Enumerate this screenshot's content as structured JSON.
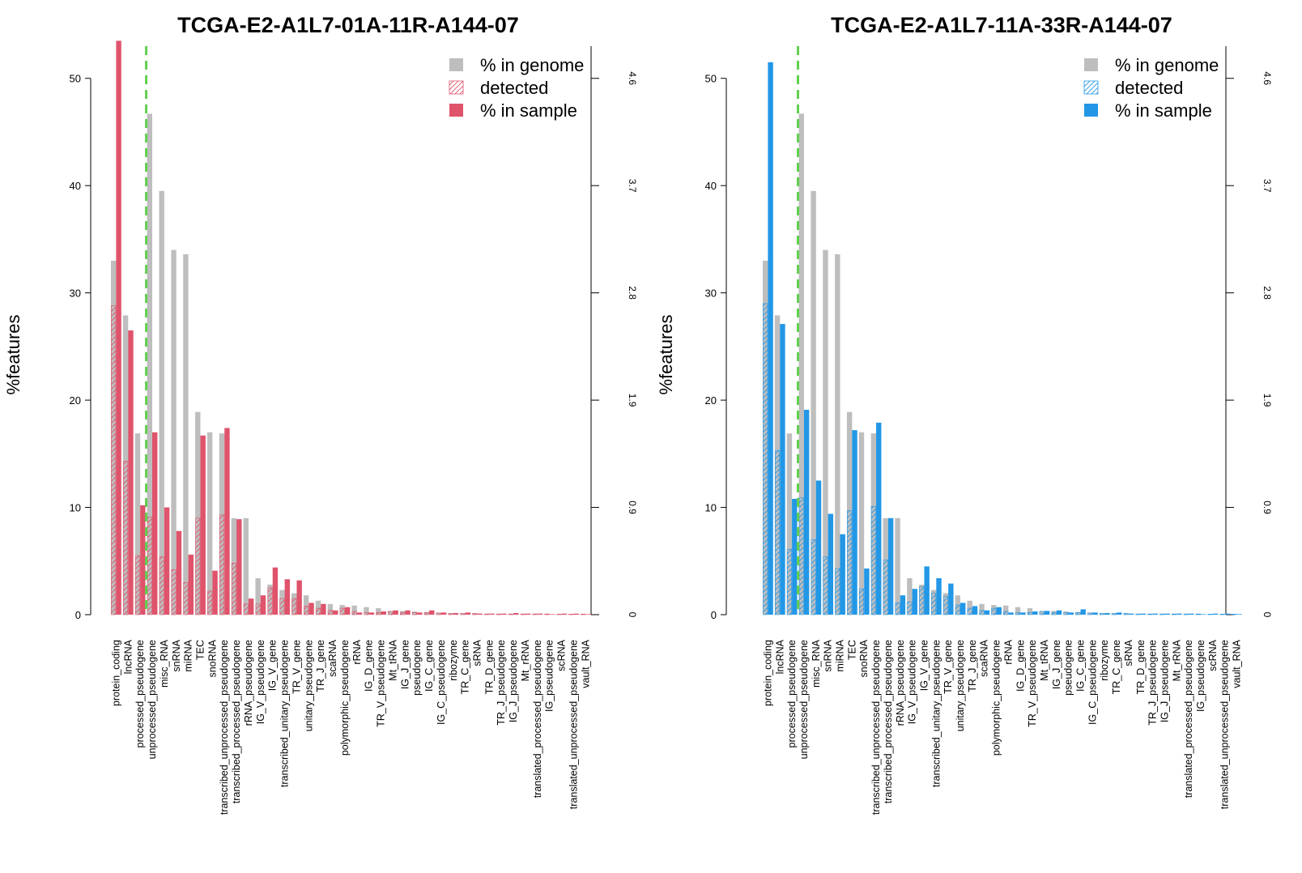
{
  "colors": {
    "genome": "#bebebe",
    "left_sample": "#df536b",
    "right_sample": "#2297e6",
    "cutoff": "#61d04f"
  },
  "chart_data": [
    {
      "type": "bar",
      "title": "TCGA-E2-A1L7-01A-11R-A144-07",
      "ylabel": "%features",
      "ylim": [
        0,
        53
      ],
      "yticks": [
        "0",
        "10",
        "20",
        "30",
        "40",
        "50"
      ],
      "right_ticks": [
        "0",
        "0.9",
        "1.9",
        "2.8",
        "3.7",
        "4.6"
      ],
      "legend": [
        "% in genome",
        "detected",
        "% in sample"
      ],
      "legend_position": "top-right",
      "sample_color": "left_sample",
      "cutoff_after_index": 2,
      "categories": [
        "protein_coding",
        "lncRNA",
        "processed_pseudogene",
        "unprocessed_pseudogene",
        "misc_RNA",
        "snRNA",
        "miRNA",
        "TEC",
        "snoRNA",
        "transcribed_unprocessed_pseudogene",
        "transcribed_processed_pseudogene",
        "rRNA_pseudogene",
        "IG_V_pseudogene",
        "IG_V_gene",
        "transcribed_unitary_pseudogene",
        "TR_V_gene",
        "unitary_pseudogene",
        "TR_J_gene",
        "scaRNA",
        "polymorphic_pseudogene",
        "rRNA",
        "IG_D_gene",
        "TR_V_pseudogene",
        "Mt_tRNA",
        "IG_J_gene",
        "pseudogene",
        "IG_C_gene",
        "IG_C_pseudogene",
        "ribozyme",
        "TR_C_gene",
        "sRNA",
        "TR_D_gene",
        "TR_J_pseudogene",
        "IG_J_pseudogene",
        "Mt_rRNA",
        "translated_processed_pseudogene",
        "IG_pseudogene",
        "scRNA",
        "translated_unprocessed_pseudogene",
        "vault_RNA"
      ],
      "series": [
        {
          "name": "% in genome",
          "values": [
            33.0,
            27.9,
            16.9,
            46.7,
            39.5,
            34.0,
            33.6,
            18.9,
            17.0,
            16.9,
            9.0,
            9.0,
            3.4,
            2.8,
            2.3,
            2.0,
            1.8,
            1.3,
            1.0,
            0.9,
            0.85,
            0.7,
            0.6,
            0.35,
            0.35,
            0.3,
            0.25,
            0.2,
            0.15,
            0.15,
            0.15,
            0.1,
            0.1,
            0.1,
            0.1,
            0.1,
            0.1,
            0.05,
            0.05,
            0.05
          ]
        },
        {
          "name": "detected",
          "values": [
            28.8,
            14.3,
            5.5,
            9.1,
            5.4,
            4.2,
            3.0,
            9.0,
            2.2,
            9.3,
            4.8,
            1.0,
            1.0,
            2.5,
            1.5,
            1.5,
            0.8,
            0.6,
            0.4,
            0.6,
            0.3,
            0.2,
            0.2,
            0.3,
            0.2,
            0.2,
            0.2,
            0.15,
            0.1,
            0.1,
            0.1,
            0.05,
            0.05,
            0.05,
            0.05,
            0.05,
            0.05,
            0.05,
            0.05,
            0.05
          ]
        },
        {
          "name": "% in sample",
          "values": [
            53.5,
            26.5,
            10.2,
            17.0,
            10.0,
            7.8,
            5.6,
            16.7,
            4.1,
            17.4,
            8.9,
            1.5,
            1.8,
            4.4,
            3.3,
            3.2,
            1.1,
            1.0,
            0.4,
            0.7,
            0.2,
            0.2,
            0.3,
            0.4,
            0.4,
            0.2,
            0.4,
            0.2,
            0.15,
            0.2,
            0.1,
            0.1,
            0.1,
            0.15,
            0.1,
            0.1,
            0.05,
            0.1,
            0.1,
            0.05
          ]
        }
      ]
    },
    {
      "type": "bar",
      "title": "TCGA-E2-A1L7-11A-33R-A144-07",
      "ylabel": "%features",
      "ylim": [
        0,
        53
      ],
      "yticks": [
        "0",
        "10",
        "20",
        "30",
        "40",
        "50"
      ],
      "right_ticks": [
        "0",
        "0.9",
        "1.9",
        "2.8",
        "3.7",
        "4.6"
      ],
      "legend": [
        "% in genome",
        "detected",
        "% in sample"
      ],
      "legend_position": "top-right",
      "sample_color": "right_sample",
      "cutoff_after_index": 2,
      "categories": [
        "protein_coding",
        "lncRNA",
        "processed_pseudogene",
        "unprocessed_pseudogene",
        "misc_RNA",
        "snRNA",
        "miRNA",
        "TEC",
        "snoRNA",
        "transcribed_unprocessed_pseudogene",
        "transcribed_processed_pseudogene",
        "rRNA_pseudogene",
        "IG_V_pseudogene",
        "IG_V_gene",
        "transcribed_unitary_pseudogene",
        "TR_V_gene",
        "unitary_pseudogene",
        "TR_J_gene",
        "scaRNA",
        "polymorphic_pseudogene",
        "rRNA",
        "IG_D_gene",
        "TR_V_pseudogene",
        "Mt_tRNA",
        "IG_J_gene",
        "pseudogene",
        "IG_C_gene",
        "IG_C_pseudogene",
        "ribozyme",
        "TR_C_gene",
        "sRNA",
        "TR_D_gene",
        "TR_J_pseudogene",
        "IG_J_pseudogene",
        "Mt_rRNA",
        "translated_processed_pseudogene",
        "IG_pseudogene",
        "scRNA",
        "translated_unprocessed_pseudogene",
        "vault_RNA"
      ],
      "series": [
        {
          "name": "% in genome",
          "values": [
            33.0,
            27.9,
            16.9,
            46.7,
            39.5,
            34.0,
            33.6,
            18.9,
            17.0,
            16.9,
            9.0,
            9.0,
            3.4,
            2.8,
            2.3,
            2.0,
            1.8,
            1.3,
            1.0,
            0.9,
            0.85,
            0.7,
            0.6,
            0.35,
            0.35,
            0.3,
            0.25,
            0.2,
            0.15,
            0.15,
            0.15,
            0.1,
            0.1,
            0.1,
            0.1,
            0.1,
            0.1,
            0.05,
            0.05,
            0.05
          ]
        },
        {
          "name": "detected",
          "values": [
            29.0,
            15.3,
            6.1,
            10.9,
            7.0,
            5.4,
            4.3,
            9.7,
            2.4,
            10.1,
            5.1,
            1.1,
            1.2,
            2.6,
            2.0,
            1.7,
            0.9,
            0.6,
            0.4,
            0.6,
            0.3,
            0.2,
            0.2,
            0.3,
            0.2,
            0.2,
            0.2,
            0.15,
            0.1,
            0.1,
            0.1,
            0.05,
            0.05,
            0.05,
            0.05,
            0.05,
            0.05,
            0.05,
            0.05,
            0.05
          ]
        },
        {
          "name": "% in sample",
          "values": [
            51.5,
            27.1,
            10.8,
            19.1,
            12.5,
            9.4,
            7.5,
            17.2,
            4.3,
            17.9,
            9.0,
            1.8,
            2.4,
            4.5,
            3.4,
            2.9,
            1.1,
            0.8,
            0.4,
            0.7,
            0.2,
            0.2,
            0.3,
            0.35,
            0.4,
            0.2,
            0.5,
            0.2,
            0.15,
            0.2,
            0.1,
            0.1,
            0.1,
            0.1,
            0.1,
            0.1,
            0.05,
            0.1,
            0.1,
            0.05
          ]
        }
      ]
    }
  ]
}
